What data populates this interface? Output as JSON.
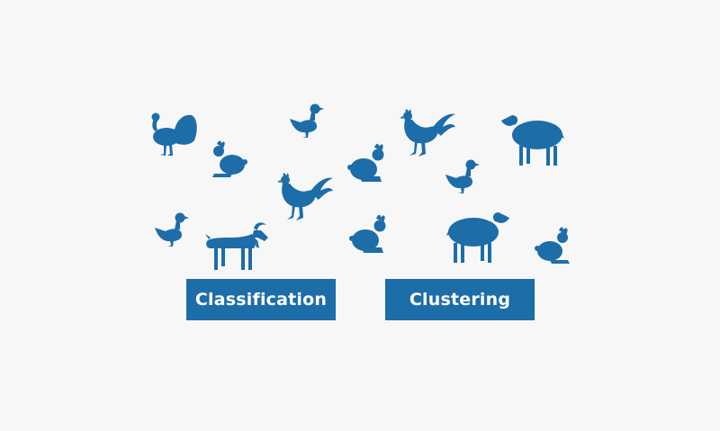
{
  "colors": {
    "background": "#f7f7f7",
    "accent": "#1d6da8"
  },
  "labels": {
    "classification": "Classification",
    "clustering": "Clustering"
  },
  "animals": [
    {
      "kind": "turkey",
      "icon": "turkey-icon"
    },
    {
      "kind": "rabbit",
      "icon": "rabbit-icon"
    },
    {
      "kind": "duck",
      "icon": "duck-icon"
    },
    {
      "kind": "rooster",
      "icon": "rooster-icon"
    },
    {
      "kind": "duck",
      "icon": "duck-icon"
    },
    {
      "kind": "goat",
      "icon": "goat-icon"
    },
    {
      "kind": "rooster",
      "icon": "rooster-icon"
    },
    {
      "kind": "rabbit",
      "icon": "rabbit-icon"
    },
    {
      "kind": "sheep",
      "icon": "sheep-icon"
    },
    {
      "kind": "duck",
      "icon": "duck-icon"
    },
    {
      "kind": "rabbit",
      "icon": "rabbit-icon"
    },
    {
      "kind": "sheep",
      "icon": "sheep-icon"
    },
    {
      "kind": "rabbit",
      "icon": "rabbit-icon"
    }
  ]
}
